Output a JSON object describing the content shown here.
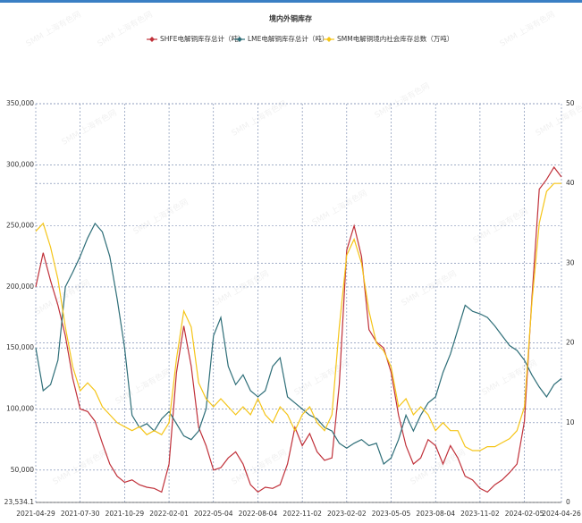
{
  "chart_data": {
    "type": "line",
    "title": "境内外铜库存",
    "watermark": "SMM 上海有色网",
    "categories": [
      "2021-04-29",
      null,
      null,
      null,
      null,
      null,
      "2021-07-30",
      null,
      null,
      null,
      null,
      null,
      "2021-10-29",
      null,
      null,
      null,
      null,
      null,
      "2022-02-01",
      null,
      null,
      null,
      null,
      null,
      "2022-05-04",
      null,
      null,
      null,
      null,
      null,
      "2022-08-04",
      null,
      null,
      null,
      null,
      null,
      "2022-11-02",
      null,
      null,
      null,
      null,
      null,
      "2023-02-02",
      null,
      null,
      null,
      null,
      null,
      "2023-05-05",
      null,
      null,
      null,
      null,
      null,
      "2023-08-04",
      null,
      null,
      null,
      null,
      null,
      "2023-11-02",
      null,
      null,
      null,
      null,
      null,
      "2024-02-05",
      null,
      null,
      null,
      null,
      "2024-04-26"
    ],
    "series": [
      {
        "name": "SHFE电解铜库存总计（吨）",
        "color": "#c0313a",
        "values": [
          200000,
          228000,
          205000,
          185000,
          160000,
          125000,
          100000,
          98000,
          90000,
          72000,
          55000,
          45000,
          40000,
          42000,
          38000,
          36000,
          35000,
          32000,
          55000,
          130000,
          168000,
          135000,
          85000,
          70000,
          50000,
          52000,
          60000,
          65000,
          55000,
          38000,
          32000,
          36000,
          35000,
          38000,
          55000,
          85000,
          70000,
          80000,
          65000,
          58000,
          60000,
          120000,
          230000,
          250000,
          225000,
          165000,
          155000,
          150000,
          130000,
          95000,
          70000,
          55000,
          60000,
          75000,
          70000,
          55000,
          70000,
          60000,
          45000,
          42000,
          35000,
          32000,
          38000,
          42000,
          48000,
          55000,
          90000,
          190000,
          280000,
          288000,
          298000,
          290000
        ]
      },
      {
        "name": "LME电解铜库存总计（吨）",
        "color": "#2e6e78",
        "values": [
          150000,
          115000,
          120000,
          140000,
          200000,
          212000,
          225000,
          240000,
          252000,
          245000,
          225000,
          190000,
          150000,
          95000,
          85000,
          88000,
          82000,
          92000,
          98000,
          88000,
          78000,
          75000,
          82000,
          100000,
          160000,
          175000,
          135000,
          120000,
          128000,
          115000,
          110000,
          115000,
          135000,
          142000,
          110000,
          105000,
          100000,
          95000,
          92000,
          85000,
          82000,
          72000,
          68000,
          72000,
          75000,
          70000,
          72000,
          55000,
          60000,
          75000,
          95000,
          82000,
          95000,
          105000,
          110000,
          130000,
          145000,
          165000,
          185000,
          180000,
          178000,
          175000,
          168000,
          160000,
          152000,
          148000,
          140000,
          128000,
          118000,
          110000,
          120000,
          125000
        ]
      },
      {
        "name": "SMM电解铜境内社会库存总数（万吨）",
        "color": "#f5c518",
        "axis": "y2",
        "values": [
          34,
          35,
          32,
          28,
          22,
          17,
          14,
          15,
          14,
          12,
          11,
          10,
          9.5,
          9,
          9.5,
          8.5,
          9,
          8.5,
          10,
          18,
          24,
          22,
          15,
          13,
          12,
          13,
          12,
          11,
          12,
          11,
          13,
          11,
          10,
          12,
          11,
          9,
          11,
          12,
          10,
          9,
          11,
          22,
          31,
          33,
          30,
          24,
          20,
          19,
          17,
          12,
          13,
          11,
          12,
          11,
          9,
          10,
          9,
          9,
          7,
          6.5,
          6.5,
          7,
          7,
          7.5,
          8,
          9,
          12,
          25,
          35,
          39,
          40,
          40
        ]
      }
    ],
    "ylim": [
      23534.1,
      350000
    ],
    "yticks": [
      {
        "value": 23534.1,
        "label": "23,534.1"
      },
      {
        "value": 50000,
        "label": "50,000"
      },
      {
        "value": 100000,
        "label": "100,000"
      },
      {
        "value": 150000,
        "label": "150,000"
      },
      {
        "value": 200000,
        "label": "200,000"
      },
      {
        "value": 250000,
        "label": "250,000"
      },
      {
        "value": 300000,
        "label": "300,000"
      },
      {
        "value": 350000,
        "label": "350,000"
      }
    ],
    "y2lim": [
      0,
      50
    ],
    "y2ticks": [
      0,
      10,
      20,
      30,
      40,
      50
    ],
    "grid": true
  }
}
